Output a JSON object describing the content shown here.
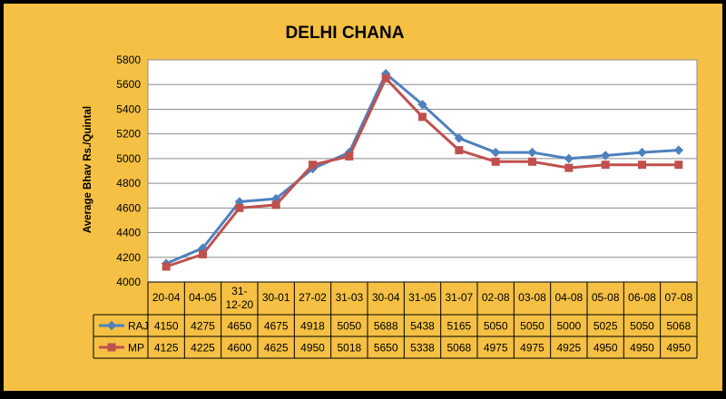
{
  "chart_data": {
    "type": "line",
    "title": "DELHI CHANA",
    "ylabel": "Average Bhav Rs./Quintal",
    "xlabel": "",
    "ylim": [
      4000,
      5800
    ],
    "ytick_step": 200,
    "grid": true,
    "legend": "data-table-left",
    "categories": [
      "20-04",
      "04-05",
      "31-12-20",
      "30-01",
      "27-02",
      "31-03",
      "30-04",
      "31-05",
      "31-07",
      "02-08",
      "03-08",
      "04-08",
      "05-08",
      "06-08",
      "07-08"
    ],
    "series": [
      {
        "name": "RAJ",
        "color": "#4F81BD",
        "marker": "diamond",
        "values": [
          4150,
          4275,
          4650,
          4675,
          4918,
          5050,
          5688,
          5438,
          5165,
          5050,
          5050,
          5000,
          5025,
          5050,
          5068
        ]
      },
      {
        "name": "MP",
        "color": "#C0504D",
        "marker": "square",
        "values": [
          4125,
          4225,
          4600,
          4625,
          4950,
          5018,
          5650,
          5338,
          5068,
          4975,
          4975,
          4925,
          4950,
          4950,
          4950
        ]
      }
    ],
    "colors": {
      "background": "#F5C043",
      "plot_area": "#FFFFFF",
      "grid": "#8C8C8C",
      "frame": "#000000"
    }
  }
}
